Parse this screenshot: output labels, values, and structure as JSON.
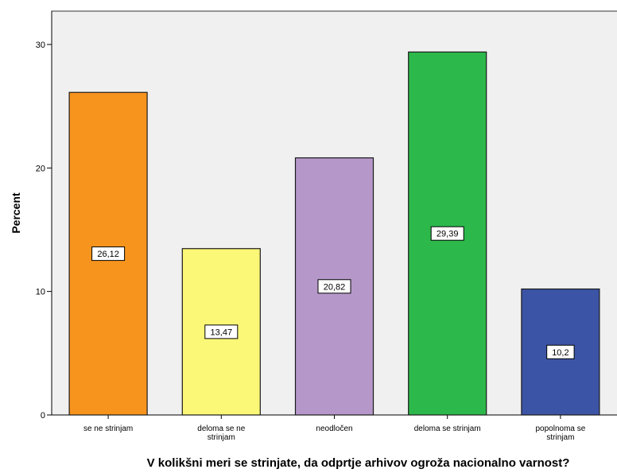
{
  "chart_data": {
    "type": "bar",
    "title": "",
    "xlabel": "V kolikšni meri se strinjate, da odprtje arhivov ogroža nacionalno varnost?",
    "ylabel": "Percent",
    "ylim": [
      0,
      32.7
    ],
    "yticks": [
      "0",
      "10",
      "20",
      "30"
    ],
    "grid": false,
    "categories": [
      [
        "se ne strinjam"
      ],
      [
        "deloma se ne",
        "strinjam"
      ],
      [
        "neodločen"
      ],
      [
        "deloma se strinjam"
      ],
      [
        "popolnoma se",
        "strinjam"
      ]
    ],
    "values": [
      26.12,
      13.47,
      20.82,
      29.39,
      10.2
    ],
    "data_labels": [
      "26,12",
      "13,47",
      "20,82",
      "29,39",
      "10,2"
    ],
    "colors": [
      "#f7941d",
      "#fbf777",
      "#b598c9",
      "#2db84b",
      "#3c54a6"
    ],
    "plot_background": "#f0f0f0"
  }
}
